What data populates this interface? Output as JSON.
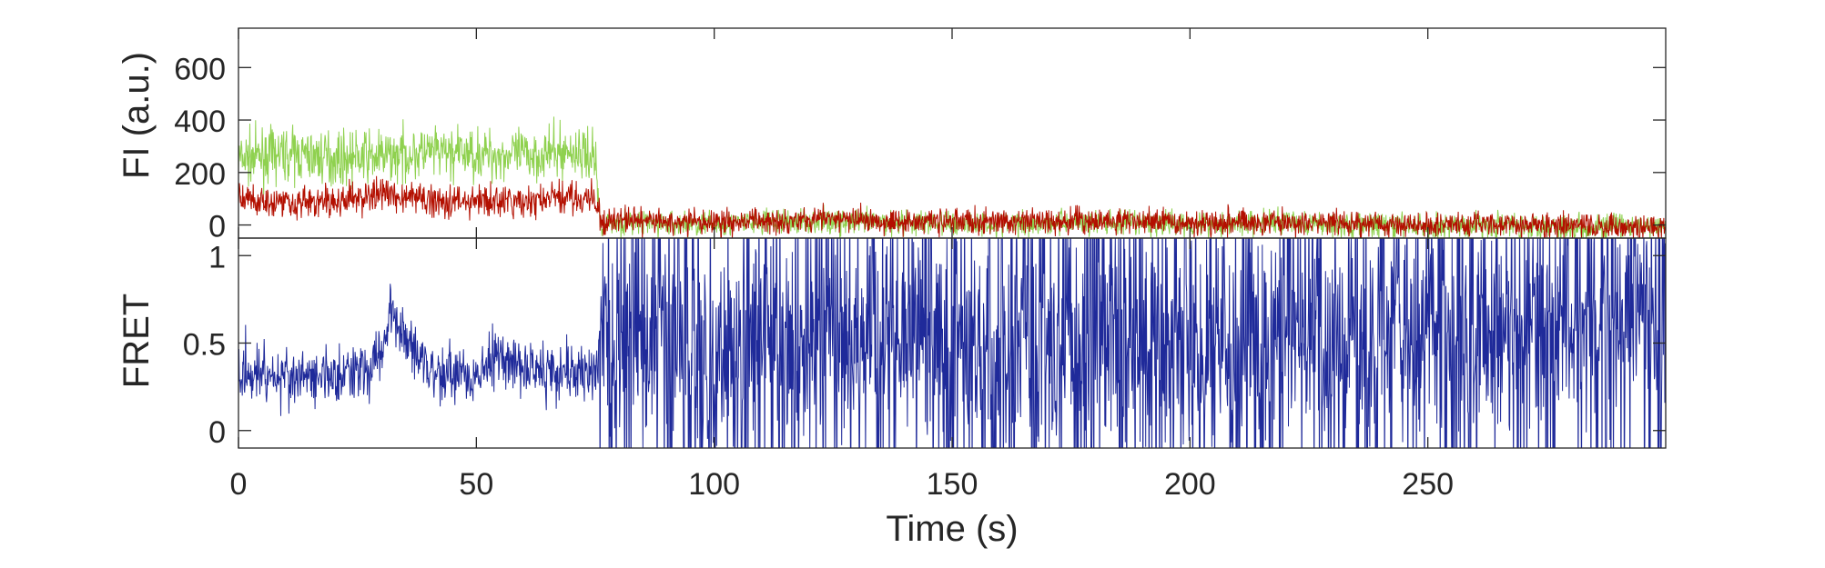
{
  "chart_data": [
    {
      "type": "line",
      "panel": "fluorescence",
      "title": "",
      "xlabel": "",
      "ylabel": "FI (a.u.)",
      "xlim": [
        0,
        300
      ],
      "ylim": [
        -50,
        750
      ],
      "yticks": [
        0,
        200,
        400,
        600
      ],
      "ytick_labels": [
        "0",
        "200",
        "400",
        "600"
      ],
      "grid": false,
      "legend": "none",
      "series": [
        {
          "color": "#8fd14f",
          "x": [
            0,
            10,
            20,
            30,
            40,
            50,
            60,
            70,
            75,
            76,
            80,
            90,
            100,
            110,
            120,
            130,
            140,
            150,
            160,
            170,
            180,
            190,
            200,
            210,
            220,
            230,
            240,
            250,
            260,
            270,
            280,
            290,
            300
          ],
          "values": [
            250,
            270,
            255,
            260,
            275,
            270,
            265,
            280,
            260,
            10,
            10,
            5,
            5,
            10,
            15,
            10,
            10,
            5,
            5,
            10,
            10,
            5,
            5,
            5,
            10,
            0,
            0,
            -5,
            0,
            0,
            -10,
            -5,
            -10
          ]
        },
        {
          "color": "#b30f00",
          "x": [
            0,
            10,
            20,
            30,
            40,
            50,
            60,
            70,
            75,
            76,
            80,
            90,
            100,
            110,
            120,
            130,
            140,
            150,
            160,
            170,
            180,
            190,
            200,
            210,
            220,
            230,
            240,
            250,
            260,
            270,
            280,
            290,
            300
          ],
          "values": [
            100,
            90,
            85,
            120,
            95,
            90,
            85,
            110,
            90,
            10,
            20,
            10,
            10,
            15,
            25,
            20,
            15,
            15,
            10,
            15,
            15,
            15,
            10,
            15,
            10,
            5,
            5,
            0,
            5,
            0,
            -5,
            -5,
            -10
          ]
        }
      ]
    },
    {
      "type": "line",
      "panel": "fret",
      "title": "",
      "xlabel": "Time (s)",
      "ylabel": "FRET",
      "xlim": [
        0,
        300
      ],
      "ylim": [
        -0.1,
        1.1
      ],
      "yticks": [
        0,
        0.5,
        1
      ],
      "ytick_labels": [
        "0",
        "0.5",
        "1"
      ],
      "xticks": [
        0,
        50,
        100,
        150,
        200,
        250
      ],
      "xtick_labels": [
        "0",
        "50",
        "100",
        "150",
        "200",
        "250"
      ],
      "grid": false,
      "legend": "none",
      "series": [
        {
          "color": "#1f2a9a",
          "x": [
            0,
            10,
            20,
            30,
            32,
            35,
            40,
            50,
            55,
            60,
            70,
            75,
            76,
            80,
            90,
            100,
            110,
            120,
            130,
            140,
            150,
            160,
            170,
            180,
            190,
            200,
            210,
            220,
            230,
            240,
            250,
            260,
            270,
            280,
            290,
            300
          ],
          "values": [
            0.35,
            0.3,
            0.3,
            0.4,
            0.7,
            0.55,
            0.35,
            0.3,
            0.45,
            0.35,
            0.35,
            0.3,
            0.5,
            0.5,
            0.5,
            0.45,
            0.5,
            0.5,
            0.5,
            0.5,
            0.5,
            0.5,
            0.5,
            0.5,
            0.5,
            0.5,
            0.5,
            0.55,
            0.55,
            0.55,
            0.6,
            0.6,
            0.6,
            0.6,
            0.65,
            0.65
          ]
        }
      ]
    }
  ]
}
